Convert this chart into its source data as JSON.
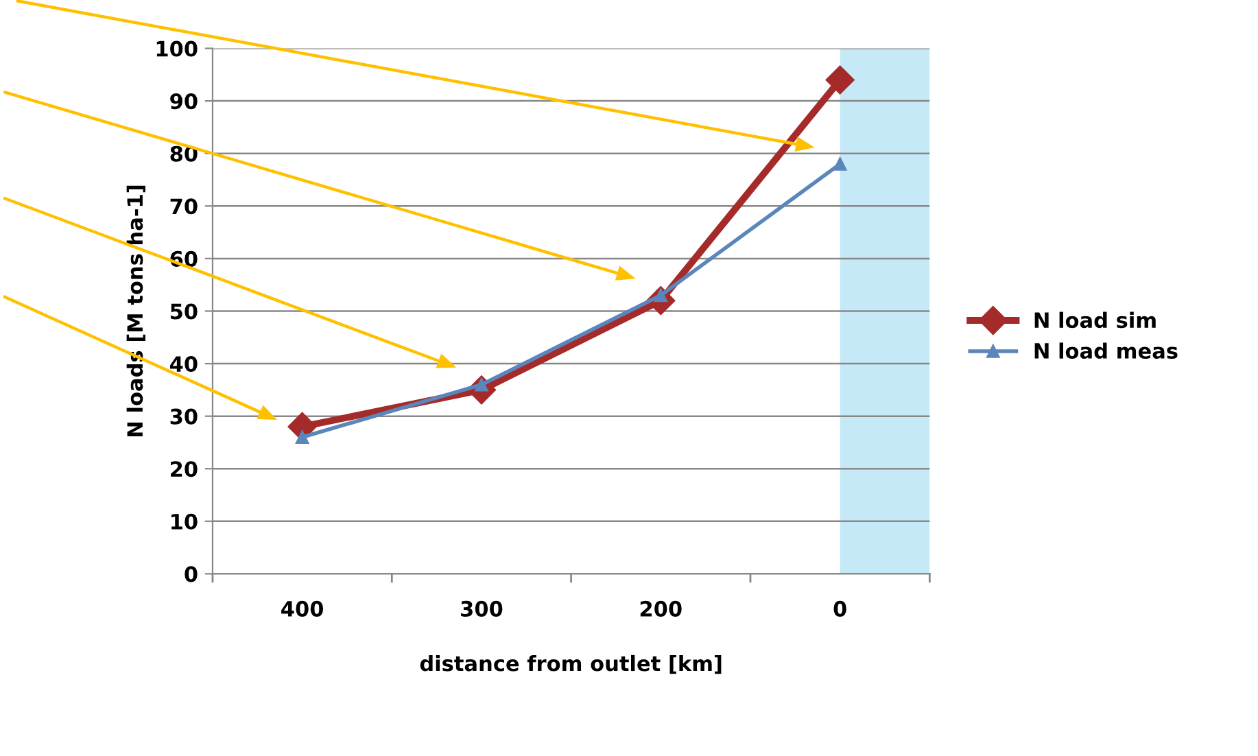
{
  "chart_data": {
    "type": "line",
    "xlabel": "distance from outlet [km]",
    "ylabel": "N loads [M tons ha-1]",
    "categories": [
      "400",
      "300",
      "200",
      "0"
    ],
    "series": [
      {
        "name": "N load sim",
        "color": "#a52a2a",
        "marker": "diamond",
        "values": [
          28,
          35,
          52,
          94
        ]
      },
      {
        "name": "N load meas",
        "color": "#5b86bb",
        "marker": "triangle",
        "values": [
          26,
          36,
          53,
          78
        ]
      }
    ],
    "ylim": [
      0,
      100
    ],
    "yticks": [
      0,
      10,
      20,
      30,
      40,
      50,
      60,
      70,
      80,
      90,
      100
    ],
    "grid": "y",
    "legend": "right",
    "bands": [
      {
        "axis": "x",
        "from": "0",
        "to": "0",
        "color": "#c6e9f7"
      }
    ]
  }
}
